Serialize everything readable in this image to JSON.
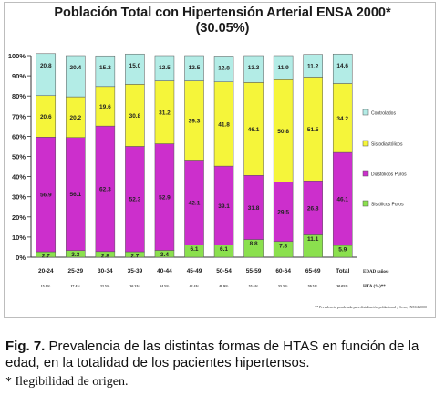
{
  "chart_data": {
    "type": "bar",
    "stacked": true,
    "title": "Población Total con Hipertensión Arterial ENSA 2000*",
    "subtitle": "(30.05%)",
    "categories": [
      "20-24",
      "25-29",
      "30-34",
      "35-39",
      "40-44",
      "45-49",
      "50-54",
      "55-59",
      "60-64",
      "65-69",
      "Total"
    ],
    "category_axis_title": "EDAD (años)",
    "row2_label": "HTA (%)**",
    "row2_values": [
      "15.0%",
      "17.4%",
      "22.5%",
      "26.2%",
      "34.5%",
      "42.4%",
      "48.9%",
      "55.6%",
      "55.5%",
      "59.5%",
      "30.05%"
    ],
    "ylim": [
      0,
      100
    ],
    "yticks": [
      "0%",
      "10%",
      "20%",
      "30%",
      "40%",
      "50%",
      "60%",
      "70%",
      "80%",
      "90%",
      "100%"
    ],
    "series": [
      {
        "name": "Sistólicos Puros",
        "color": "#8be04e",
        "values": [
          2.7,
          3.3,
          2.8,
          2.7,
          3.4,
          6.1,
          6.1,
          8.8,
          7.8,
          11.1,
          5.9
        ]
      },
      {
        "name": "Diastólicos Puros",
        "color": "#cc2fcc",
        "values": [
          56.9,
          56.1,
          62.3,
          52.3,
          52.9,
          42.1,
          39.1,
          31.8,
          29.5,
          26.8,
          46.1
        ]
      },
      {
        "name": "Sistodiastólicos",
        "color": "#f5f53a",
        "values": [
          20.6,
          20.2,
          19.6,
          30.8,
          31.2,
          39.3,
          41.8,
          46.1,
          50.8,
          51.5,
          34.2
        ]
      },
      {
        "name": "Controlados",
        "color": "#b3ece6",
        "values": [
          20.8,
          20.4,
          15.2,
          15.0,
          12.5,
          12.5,
          12.8,
          13.3,
          11.9,
          11.2,
          14.6
        ]
      }
    ],
    "legend_position": "right",
    "footnote": "** Prevalencia ponderada para distribución poblacional y Sexo, INEGI 2000",
    "grid": false
  },
  "caption": {
    "label": "Fig. 7.",
    "text": " Prevalencia de las distintas formas de HTAS en función de la edad, en la totalidad de los pacientes hipertensos."
  },
  "note": "* Ilegibilidad de origen."
}
